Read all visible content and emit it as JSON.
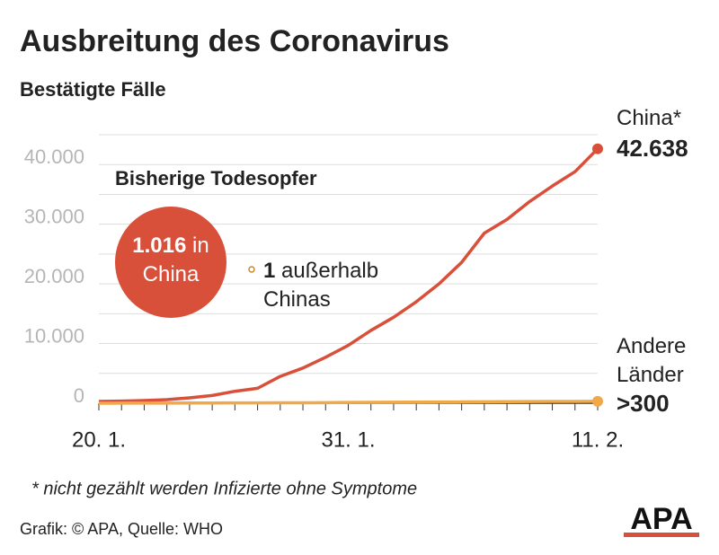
{
  "chart_data": {
    "type": "line",
    "title": "Ausbreitung des Coronavirus",
    "subtitle": "Bestätigte Fälle",
    "x": [
      "20. 1.",
      null,
      null,
      null,
      null,
      null,
      null,
      null,
      null,
      null,
      null,
      "31. 1.",
      null,
      null,
      null,
      null,
      null,
      null,
      null,
      null,
      null,
      null,
      "11. 2."
    ],
    "series": [
      {
        "name": "China*",
        "color": "#d9503a",
        "values": [
          300,
          350,
          450,
          600,
          900,
          1300,
          2000,
          2500,
          4500,
          5900,
          7700,
          9700,
          12200,
          14400,
          17000,
          20000,
          23600,
          28500,
          30800,
          33800,
          36400,
          38800,
          42638
        ],
        "value_labels": [
          null,
          null,
          null,
          null,
          null,
          null,
          null,
          null,
          null,
          null,
          null,
          null,
          null,
          null,
          null,
          null,
          null,
          null,
          null,
          null,
          null,
          null,
          "42.638"
        ]
      },
      {
        "name": "Andere Länder",
        "color": "#f0a848",
        "values": [
          5,
          10,
          15,
          20,
          30,
          40,
          50,
          60,
          70,
          80,
          100,
          130,
          150,
          160,
          180,
          200,
          220,
          250,
          270,
          290,
          300,
          310,
          319
        ],
        "value_labels": [
          null,
          null,
          null,
          null,
          null,
          null,
          null,
          null,
          null,
          null,
          null,
          null,
          null,
          null,
          null,
          null,
          null,
          null,
          null,
          null,
          null,
          null,
          ">300"
        ]
      }
    ],
    "ylim": [
      0,
      45000
    ],
    "yticks": [
      0,
      {
        "value": 10000,
        "label": "10.000"
      },
      {
        "value": 20000,
        "label": "20.000"
      },
      {
        "value": 30000,
        "label": "30.000"
      },
      {
        "value": 40000,
        "label": "40.000"
      }
    ],
    "minor_yticks": [
      5000,
      15000,
      25000,
      35000,
      45000
    ],
    "grid": true,
    "deaths": {
      "heading": "Bisherige Todesopfer",
      "china": {
        "number": "1.016",
        "text": "in China"
      },
      "outside": {
        "number": "1",
        "text": "außerhalb Chinas"
      }
    },
    "footnote": "* nicht gezählt werden Infizierte ohne Symptome",
    "source": "Grafik: © APA, Quelle: WHO",
    "logo": "APA"
  }
}
